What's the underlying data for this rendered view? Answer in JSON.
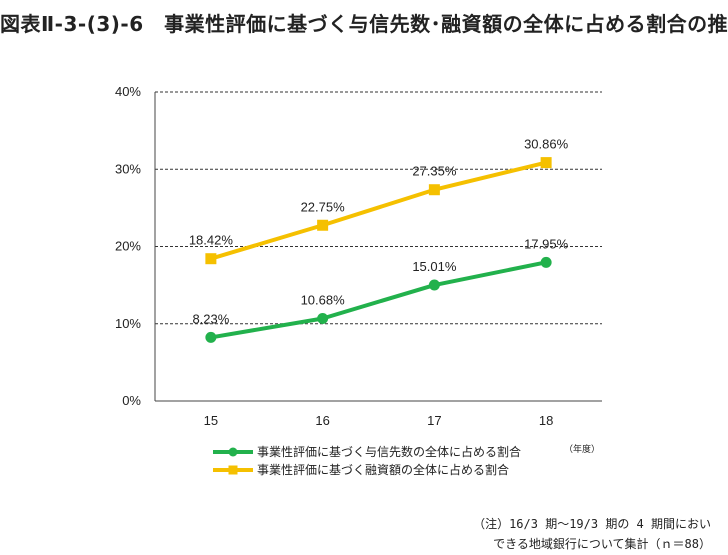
{
  "title": "図表Ⅱ-3-(3)-6　事業性評価に基づく与信先数･融資額の全体に占める割合の推",
  "chart_data": {
    "type": "line",
    "categories": [
      "15",
      "16",
      "17",
      "18"
    ],
    "ylim": [
      0,
      40
    ],
    "yticks": [
      "0%",
      "10%",
      "20%",
      "30%",
      "40%"
    ],
    "x_unit": "（年度）",
    "grid": true,
    "legend_position": "bottom",
    "series": [
      {
        "name": "事業性評価に基づく与信先数の全体に占める割合",
        "values": [
          8.23,
          10.68,
          15.01,
          17.95
        ],
        "labels": [
          "8.23%",
          "10.68%",
          "15.01%",
          "17.95%"
        ],
        "color": "#22b14c",
        "marker": "circle"
      },
      {
        "name": "事業性評価に基づく融資額の全体に占める割合",
        "values": [
          18.42,
          22.75,
          27.35,
          30.86
        ],
        "labels": [
          "18.42%",
          "22.75%",
          "27.35%",
          "30.86%"
        ],
        "color": "#f5c000",
        "marker": "square"
      }
    ]
  },
  "note": {
    "line1": "（注）16/3 期～19/3 期の 4 期間におい",
    "line2": "できる地域銀行について集計（ｎ＝88）"
  }
}
